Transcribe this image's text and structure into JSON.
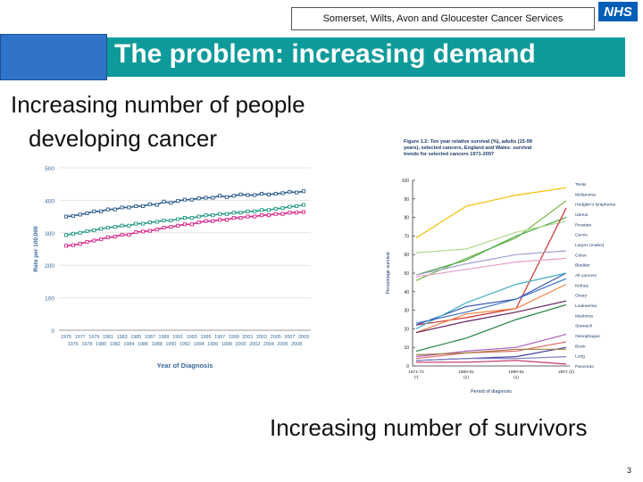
{
  "header": {
    "org_text": "Somerset, Wilts, Avon and Gloucester Cancer Services",
    "logo_text": "NHS"
  },
  "title": "The problem: increasing demand",
  "body": {
    "line1": "Increasing number of people",
    "line2": "developing cancer",
    "survivors": "Increasing number of survivors"
  },
  "page_number": "3",
  "colors": {
    "title_bar": "#0e9a9a",
    "left_block": "#2f74c9",
    "nhs_blue": "#005eb8"
  },
  "chart_data": [
    {
      "type": "line",
      "title": "",
      "xlabel": "Year of Diagnosis",
      "ylabel": "Rate per 100,000",
      "ylim": [
        0,
        500
      ],
      "yticks": [
        "0",
        "100",
        "200",
        "300",
        "400",
        "500"
      ],
      "x_row1": [
        "1975",
        "1977",
        "1979",
        "1981",
        "1983",
        "1985",
        "1987",
        "1989",
        "1991",
        "1993",
        "1995",
        "1997",
        "1999",
        "2001",
        "2003",
        "2005",
        "2007",
        "2009"
      ],
      "x_row2": [
        "1976",
        "1978",
        "1980",
        "1982",
        "1984",
        "1986",
        "1988",
        "1990",
        "1992",
        "1994",
        "1996",
        "1998",
        "2000",
        "2002",
        "2004",
        "2006",
        "2008"
      ],
      "x": [
        1975,
        1976,
        1977,
        1978,
        1979,
        1980,
        1981,
        1982,
        1983,
        1984,
        1985,
        1986,
        1987,
        1988,
        1989,
        1990,
        1991,
        1992,
        1993,
        1994,
        1995,
        1996,
        1997,
        1998,
        1999,
        2000,
        2001,
        2002,
        2003,
        2004,
        2005,
        2006,
        2007,
        2008,
        2009
      ],
      "series": [
        {
          "color": "#2f5f8f",
          "values": [
            350,
            352,
            356,
            360,
            366,
            366,
            372,
            372,
            378,
            378,
            382,
            382,
            388,
            386,
            396,
            392,
            398,
            402,
            402,
            406,
            408,
            408,
            414,
            410,
            414,
            418,
            416,
            416,
            420,
            418,
            420,
            422,
            426,
            424,
            428
          ]
        },
        {
          "color": "#2a9a86",
          "values": [
            293,
            297,
            300,
            305,
            308,
            312,
            316,
            318,
            322,
            322,
            328,
            328,
            332,
            334,
            338,
            338,
            342,
            346,
            346,
            350,
            354,
            354,
            358,
            358,
            362,
            362,
            366,
            366,
            370,
            370,
            374,
            376,
            380,
            382,
            386
          ]
        },
        {
          "color": "#d8288c",
          "values": [
            260,
            262,
            266,
            272,
            276,
            280,
            286,
            288,
            294,
            294,
            302,
            304,
            306,
            310,
            316,
            318,
            322,
            326,
            326,
            332,
            336,
            336,
            340,
            340,
            346,
            346,
            350,
            350,
            354,
            354,
            358,
            358,
            362,
            362,
            364
          ]
        }
      ]
    },
    {
      "type": "line",
      "title": "Figure 1.2: Ten year relative survival (%), adults (15-99 years), selected cancers, England and Wales: survival trends for selected cancers 1971-2007",
      "xlabel": "Period of diagnosis",
      "ylabel": "Percentage survival",
      "ylim": [
        0,
        100
      ],
      "yticks": [
        "0",
        "10",
        "20",
        "30",
        "40",
        "50",
        "60",
        "70",
        "80",
        "90",
        "100"
      ],
      "categories": [
        "1971-72 (*)",
        "1980-81 (1)",
        "1990-91 (1)",
        "2007 (2)"
      ],
      "cat_line1": [
        "1971-72",
        "1980-81",
        "1990-91",
        "2007 (2)"
      ],
      "cat_line2": [
        "(*)",
        "(1)",
        "(1)",
        ""
      ],
      "series": [
        {
          "name": "Testis",
          "color": "#f0c000",
          "values": [
            69,
            86,
            92,
            96
          ]
        },
        {
          "name": "Melanoma",
          "color": "#7ab648",
          "values": [
            46,
            58,
            69,
            89
          ]
        },
        {
          "name": "Hodgkin's lymphoma",
          "color": "#44aa44",
          "values": [
            49,
            57,
            70,
            80
          ]
        },
        {
          "name": "Uterus",
          "color": "#b0d890",
          "values": [
            61,
            63,
            72,
            78
          ]
        },
        {
          "name": "Prostate",
          "color": "#d03030",
          "values": [
            22,
            26,
            31,
            85
          ]
        },
        {
          "name": "Cervix",
          "color": "#e8a0c8",
          "values": [
            48,
            52,
            56,
            58
          ]
        },
        {
          "name": "Larynx (males)",
          "color": "#a0a0d0",
          "values": [
            49,
            55,
            60,
            62
          ]
        },
        {
          "name": "Colon",
          "color": "#3050b0",
          "values": [
            22,
            32,
            36,
            50
          ]
        },
        {
          "name": "Bladder",
          "color": "#40b0c0",
          "values": [
            20,
            34,
            44,
            50
          ]
        },
        {
          "name": "All cancers",
          "color": "#4070c0",
          "values": [
            23,
            29,
            36,
            47
          ]
        },
        {
          "name": "Kidney",
          "color": "#f08040",
          "values": [
            18,
            28,
            31,
            44
          ]
        },
        {
          "name": "Ovary",
          "color": "#602060",
          "values": [
            18,
            24,
            29,
            35
          ]
        },
        {
          "name": "Leukaemia",
          "color": "#208040",
          "values": [
            8,
            15,
            25,
            33
          ]
        },
        {
          "name": "Myeloma",
          "color": "#b060c0",
          "values": [
            5,
            8,
            10,
            17
          ]
        },
        {
          "name": "Stomach",
          "color": "#e07070",
          "values": [
            4,
            7,
            8,
            13
          ]
        },
        {
          "name": "Oesophagus",
          "color": "#4040a0",
          "values": [
            3,
            4,
            5,
            10
          ]
        },
        {
          "name": "Brain",
          "color": "#a08040",
          "values": [
            6,
            7,
            9,
            9
          ]
        },
        {
          "name": "Lung",
          "color": "#8080c0",
          "values": [
            3,
            4,
            4,
            5
          ]
        },
        {
          "name": "Pancreas",
          "color": "#c03060",
          "values": [
            2,
            2,
            3,
            1
          ]
        }
      ],
      "legend_labels": [
        "Testis",
        "Melanoma",
        "Hodgkin's lymphoma",
        "Uterus",
        "Prostate",
        "Cervix",
        "Larynx (males)",
        "Colon",
        "Bladder",
        "All cancers",
        "Kidney",
        "Ovary",
        "Leukaemia",
        "Myeloma",
        "Stomach",
        "Oesophagus",
        "Brain",
        "Lung",
        "Pancreas"
      ]
    }
  ]
}
